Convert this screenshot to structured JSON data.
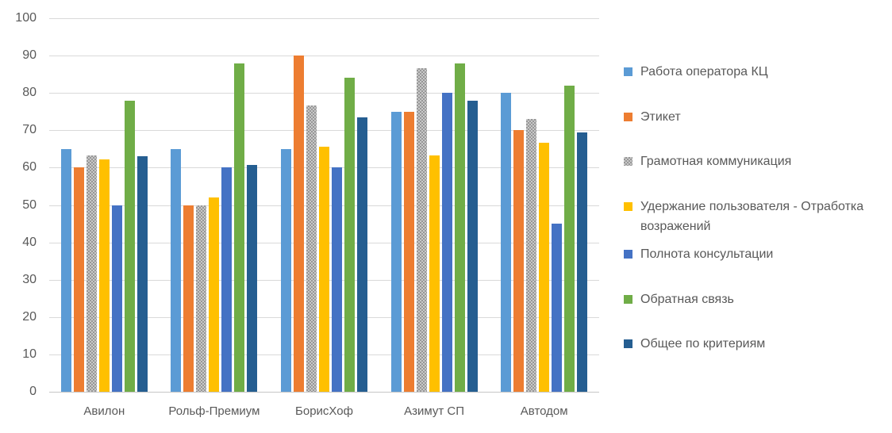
{
  "colors": {
    "background": "#FFFFFF",
    "gridline": "#D9D9D9",
    "axis_line": "#C6C6C6",
    "axis_text": "#595959"
  },
  "chart_data": {
    "type": "bar",
    "title": "",
    "xlabel": "",
    "ylabel": "",
    "categories": [
      "Авилон",
      "Рольф-Премиум",
      "БорисХоф",
      "Азимут СП",
      "Автодом"
    ],
    "series": [
      {
        "name": "Работа оператора КЦ",
        "color": "#5B9BD5",
        "pattern": false,
        "values": [
          65,
          65,
          65,
          75,
          80
        ]
      },
      {
        "name": "Этикет",
        "color": "#ED7D31",
        "pattern": false,
        "values": [
          60,
          50,
          90,
          75,
          70
        ]
      },
      {
        "name": "Грамотная коммуникация",
        "color": "#A5A5A5",
        "pattern": true,
        "values": [
          63.3,
          50,
          76.6,
          86.7,
          73
        ]
      },
      {
        "name": "Удержание пользователя - Отработка возражений",
        "color": "#FFC000",
        "pattern": false,
        "values": [
          62.3,
          52,
          65.7,
          63.3,
          66.7
        ]
      },
      {
        "name": "Полнота консультации",
        "color": "#4472C4",
        "pattern": false,
        "values": [
          50,
          60,
          60,
          80,
          45
        ]
      },
      {
        "name": "Обратная связь",
        "color": "#70AD47",
        "pattern": false,
        "values": [
          78,
          88,
          84,
          88,
          82
        ]
      },
      {
        "name": "Общее по критериям",
        "color": "#255E91",
        "pattern": false,
        "values": [
          63.1,
          60.8,
          73.4,
          78,
          69.5
        ]
      }
    ],
    "ylim": [
      0,
      100
    ],
    "y_ticks": [
      0,
      10,
      20,
      30,
      40,
      50,
      60,
      70,
      80,
      90,
      100
    ],
    "grid": true,
    "legend_position": "right"
  }
}
